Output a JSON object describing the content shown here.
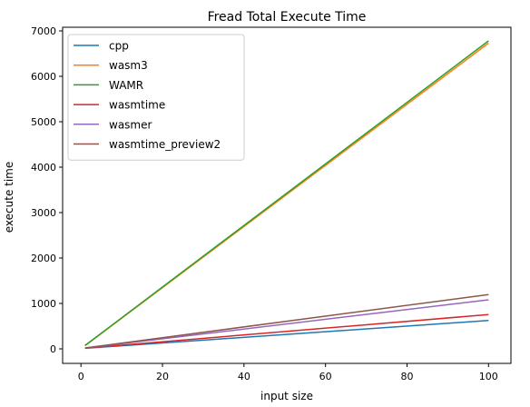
{
  "chart_data": {
    "type": "line",
    "title": "Fread Total Execute Time",
    "xlabel": "input size",
    "ylabel": "execute time",
    "xlim": [
      -4.5,
      105.5
    ],
    "ylim": [
      -320,
      7080
    ],
    "xticks": [
      0,
      20,
      40,
      60,
      80,
      100
    ],
    "yticks": [
      0,
      1000,
      2000,
      3000,
      4000,
      5000,
      6000,
      7000
    ],
    "grid": false,
    "legend_position": "top-left",
    "series": [
      {
        "name": "cpp",
        "color": "#1f77b4",
        "x": [
          1,
          100
        ],
        "y": [
          12,
          625
        ]
      },
      {
        "name": "wasm3",
        "color": "#ff7f0e",
        "x": [
          1,
          100
        ],
        "y": [
          70,
          6730
        ]
      },
      {
        "name": "WAMR",
        "color": "#2ca02c",
        "x": [
          1,
          100
        ],
        "y": [
          75,
          6780
        ]
      },
      {
        "name": "wasmtime",
        "color": "#d62728",
        "x": [
          1,
          100
        ],
        "y": [
          15,
          755
        ]
      },
      {
        "name": "wasmer",
        "color": "#9467bd",
        "x": [
          1,
          100
        ],
        "y": [
          18,
          1080
        ]
      },
      {
        "name": "wasmtime_preview2",
        "color": "#8c564b",
        "x": [
          1,
          100
        ],
        "y": [
          20,
          1195
        ]
      }
    ]
  }
}
